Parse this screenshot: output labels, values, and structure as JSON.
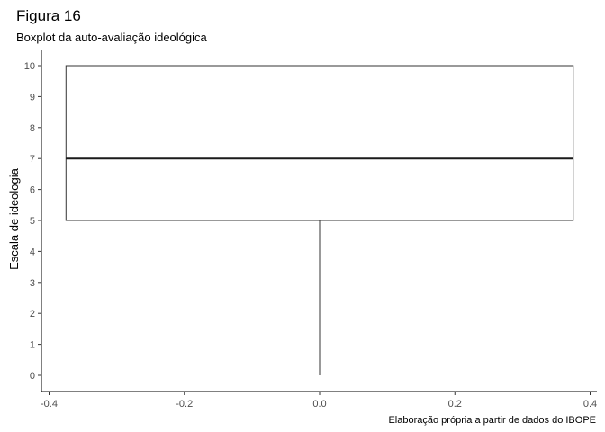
{
  "title": "Figura 16",
  "subtitle": "Boxplot da auto-avaliação ideológica",
  "caption": "Elaboração própria a partir de dados do IBOPE",
  "chart_data": {
    "type": "boxplot",
    "title": "Figura 16",
    "subtitle": "Boxplot da auto-avaliação ideológica",
    "xlabel": "",
    "ylabel": "Escala de ideologia",
    "xlim": [
      -0.4,
      0.4
    ],
    "ylim": [
      0,
      10
    ],
    "x_ticks": [
      -0.4,
      -0.2,
      0.0,
      0.2,
      0.4
    ],
    "x_tick_labels": [
      "-0.4",
      "-0.2",
      "0.0",
      "0.2",
      "0.4"
    ],
    "y_ticks": [
      0,
      1,
      2,
      3,
      4,
      5,
      6,
      7,
      8,
      9,
      10
    ],
    "y_tick_labels": [
      "0",
      "1",
      "2",
      "3",
      "4",
      "5",
      "6",
      "7",
      "8",
      "9",
      "10"
    ],
    "box": {
      "x_center": 0.0,
      "x_left": -0.375,
      "x_right": 0.375,
      "min": 0,
      "q1": 5,
      "median": 7,
      "q3": 10,
      "max": 10
    },
    "grid": false,
    "caption": "Elaboração própria a partir de dados do IBOPE"
  }
}
